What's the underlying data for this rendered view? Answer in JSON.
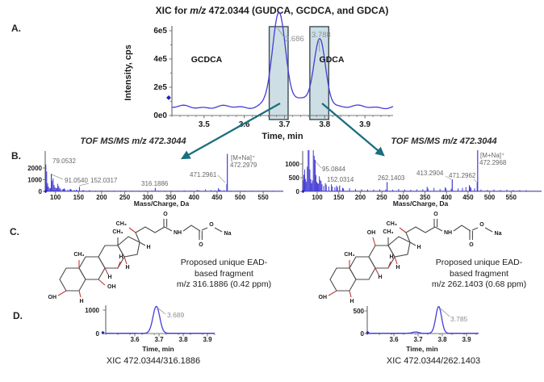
{
  "title": {
    "pre": "XIC for ",
    "mz": "m/z",
    "post": " 472.0344 (GUDCA, GCDCA, and GDCA)"
  },
  "panels": {
    "a": "A.",
    "b": "B.",
    "c": "C.",
    "d": "D."
  },
  "colors": {
    "trace": "#453cd6",
    "arrow": "#1b6e7e",
    "highlight_fill": "#cddee5",
    "highlight_border": "#3c4c54",
    "peak_label": "#8e8e8e",
    "mass_label": "#666666",
    "axis": "#777777",
    "bond": "#4a4a4a",
    "red_bond": "#c23a3a"
  },
  "chart_data": [
    {
      "id": "xic_a",
      "type": "line",
      "xlabel": "Time, min",
      "ylabel": "Intensity, cps",
      "x_range": [
        3.42,
        3.97
      ],
      "y_range": [
        0,
        600000
      ],
      "xticks": [
        {
          "v": 3.5,
          "label": "3.5"
        },
        {
          "v": 3.6,
          "label": "3.6"
        },
        {
          "v": 3.7,
          "label": "3.7"
        },
        {
          "v": 3.8,
          "label": "3.8"
        },
        {
          "v": 3.9,
          "label": "3.9"
        }
      ],
      "yticks": [
        {
          "v": 0,
          "label": "0e0"
        },
        {
          "v": 200000,
          "label": "2e5"
        },
        {
          "v": 400000,
          "label": "4e5"
        },
        {
          "v": 600000,
          "label": "6e5"
        }
      ],
      "baseline": 60000,
      "peaks": [
        {
          "name": "GCDCA",
          "rt": 3.686,
          "intensity": 630000,
          "sigma": 0.016,
          "label": "3.686"
        },
        {
          "name": "GDCA",
          "rt": 3.788,
          "intensity": 435000,
          "sigma": 0.014,
          "label": "3.788"
        },
        {
          "rt": 3.74,
          "intensity": 60000,
          "sigma": 0.05
        }
      ],
      "highlight_regions": [
        [
          3.662,
          3.709
        ],
        [
          3.763,
          3.81
        ]
      ]
    },
    {
      "id": "ms_b1",
      "type": "bar",
      "title": "TOF MS/MS m/z 472.3044",
      "xlabel": "Mass/Charge, Da",
      "x_range": [
        78,
        600
      ],
      "y_range": [
        0,
        2000
      ],
      "xticks": [
        {
          "v": 100,
          "label": "100"
        },
        {
          "v": 150,
          "label": "150"
        },
        {
          "v": 200,
          "label": "200"
        },
        {
          "v": 250,
          "label": "250"
        },
        {
          "v": 300,
          "label": "300"
        },
        {
          "v": 350,
          "label": "350"
        },
        {
          "v": 400,
          "label": "400"
        },
        {
          "v": 450,
          "label": "450"
        },
        {
          "v": 500,
          "label": "500"
        },
        {
          "v": 550,
          "label": "550"
        }
      ],
      "yticks": [
        {
          "v": 0,
          "label": "0"
        },
        {
          "v": 1000,
          "label": "1000"
        },
        {
          "v": 2000,
          "label": "2000"
        }
      ],
      "labeled_peaks": [
        {
          "mz": 79.0532,
          "intensity": 2300,
          "label": "79.0532",
          "lx": 45,
          "ly": 19
        },
        {
          "mz": 91.054,
          "intensity": 1500,
          "label": "91.0540",
          "lx": 60,
          "ly": 43,
          "leader": [
            44,
            33,
            58,
            39
          ]
        },
        {
          "mz": 152.0317,
          "intensity": 380,
          "label": "152.0317",
          "lx": 92,
          "ly": 43,
          "leader": [
            78,
            47,
            90,
            44
          ]
        },
        {
          "mz": 316.1886,
          "intensity": 300,
          "label": "316.1886",
          "lx": 155,
          "ly": 47
        },
        {
          "mz": 471.2961,
          "intensity": 620,
          "label": "471.2961",
          "lx": 215,
          "ly": 36,
          "leader": [
            250,
            34,
            259,
            43
          ]
        },
        {
          "mz": 472.2979,
          "intensity": 3200,
          "label": "472.2979",
          "annotation": "[M+Na]⁺",
          "lx": 265,
          "ly": 24,
          "ann_y": 15
        }
      ],
      "minor_peaks": [
        [
          80,
          500
        ],
        [
          81,
          1700
        ],
        [
          82,
          400
        ],
        [
          83,
          700
        ],
        [
          85,
          400
        ],
        [
          87,
          250
        ],
        [
          89,
          300
        ],
        [
          93,
          900
        ],
        [
          95,
          1100
        ],
        [
          97,
          550
        ],
        [
          99,
          350
        ],
        [
          101,
          280
        ],
        [
          103,
          300
        ],
        [
          105,
          650
        ],
        [
          107,
          450
        ],
        [
          109,
          300
        ],
        [
          111,
          220
        ],
        [
          115,
          180
        ],
        [
          117,
          200
        ],
        [
          119,
          260
        ],
        [
          121,
          180
        ],
        [
          127,
          150
        ],
        [
          131,
          170
        ],
        [
          133,
          200
        ],
        [
          135,
          150
        ],
        [
          141,
          130
        ],
        [
          145,
          140
        ],
        [
          147,
          110
        ],
        [
          159,
          100
        ],
        [
          161,
          90
        ],
        [
          173,
          90
        ],
        [
          175,
          80
        ],
        [
          187,
          70
        ],
        [
          199,
          80
        ],
        [
          213,
          60
        ],
        [
          227,
          70
        ],
        [
          241,
          60
        ],
        [
          253,
          70
        ],
        [
          267,
          60
        ],
        [
          281,
          70
        ],
        [
          295,
          60
        ],
        [
          309,
          80
        ],
        [
          323,
          60
        ],
        [
          337,
          70
        ],
        [
          351,
          60
        ],
        [
          365,
          70
        ],
        [
          379,
          90
        ],
        [
          393,
          70
        ],
        [
          407,
          130
        ],
        [
          411,
          90
        ],
        [
          425,
          180
        ],
        [
          437,
          110
        ],
        [
          445,
          90
        ],
        [
          453,
          280
        ],
        [
          455,
          160
        ],
        [
          457,
          110
        ],
        [
          465,
          90
        ],
        [
          480,
          60
        ],
        [
          495,
          50
        ],
        [
          510,
          60
        ],
        [
          525,
          50
        ],
        [
          540,
          60
        ],
        [
          555,
          50
        ],
        [
          570,
          45
        ]
      ]
    },
    {
      "id": "ms_b2",
      "type": "bar",
      "title": "TOF MS/MS m/z 472.3044",
      "xlabel": "Mass/Charge, Da",
      "x_range": [
        66,
        620
      ],
      "y_range": [
        0,
        1000
      ],
      "xticks": [
        {
          "v": 100,
          "label": "100"
        },
        {
          "v": 150,
          "label": "150"
        },
        {
          "v": 200,
          "label": "200"
        },
        {
          "v": 250,
          "label": "250"
        },
        {
          "v": 300,
          "label": "300"
        },
        {
          "v": 350,
          "label": "350"
        },
        {
          "v": 400,
          "label": "400"
        },
        {
          "v": 450,
          "label": "450"
        },
        {
          "v": 500,
          "label": "500"
        },
        {
          "v": 550,
          "label": "550"
        }
      ],
      "yticks": [
        {
          "v": 0,
          "label": "0"
        },
        {
          "v": 500,
          "label": "500"
        },
        {
          "v": 1000,
          "label": "1000"
        }
      ],
      "labeled_peaks": [
        {
          "mz": 95.0844,
          "intensity": 1150,
          "label": "95.0844",
          "lx": 69,
          "ly": 29,
          "leader": [
            61,
            17,
            68,
            25
          ]
        },
        {
          "mz": 152.0314,
          "intensity": 210,
          "label": "152.0314",
          "lx": 75,
          "ly": 42
        },
        {
          "mz": 262.1403,
          "intensity": 340,
          "label": "262.1403",
          "lx": 138,
          "ly": 40
        },
        {
          "mz": 413.2904,
          "intensity": 440,
          "label": "413.2904",
          "lx": 186,
          "ly": 34,
          "leader": [
            222,
            35,
            229,
            39
          ]
        },
        {
          "mz": 471.2962,
          "intensity": 340,
          "label": "471.2962",
          "lx": 226,
          "ly": 37,
          "leader": [
            257,
            39,
            260,
            42
          ]
        },
        {
          "mz": 472.2968,
          "intensity": 1700,
          "label": "472.2968",
          "annotation": "[M+Na]⁺",
          "lx": 264,
          "ly": 21,
          "ann_y": 12
        }
      ],
      "minor_peaks": [
        [
          67,
          400
        ],
        [
          69,
          600
        ],
        [
          71,
          800
        ],
        [
          73,
          450
        ],
        [
          75,
          350
        ],
        [
          77,
          900
        ],
        [
          79,
          1900
        ],
        [
          81,
          1800
        ],
        [
          83,
          800
        ],
        [
          85,
          450
        ],
        [
          87,
          300
        ],
        [
          89,
          400
        ],
        [
          91,
          1750
        ],
        [
          93,
          1300
        ],
        [
          97,
          600
        ],
        [
          99,
          350
        ],
        [
          101,
          300
        ],
        [
          103,
          280
        ],
        [
          105,
          550
        ],
        [
          107,
          420
        ],
        [
          109,
          380
        ],
        [
          111,
          260
        ],
        [
          115,
          200
        ],
        [
          119,
          300
        ],
        [
          121,
          240
        ],
        [
          127,
          180
        ],
        [
          133,
          260
        ],
        [
          135,
          180
        ],
        [
          141,
          150
        ],
        [
          145,
          210
        ],
        [
          147,
          150
        ],
        [
          159,
          130
        ],
        [
          161,
          110
        ],
        [
          175,
          120
        ],
        [
          189,
          90
        ],
        [
          203,
          80
        ],
        [
          217,
          70
        ],
        [
          231,
          70
        ],
        [
          245,
          80
        ],
        [
          259,
          70
        ],
        [
          275,
          60
        ],
        [
          289,
          90
        ],
        [
          303,
          70
        ],
        [
          317,
          60
        ],
        [
          331,
          70
        ],
        [
          345,
          80
        ],
        [
          355,
          170
        ],
        [
          357,
          110
        ],
        [
          371,
          130
        ],
        [
          385,
          90
        ],
        [
          397,
          150
        ],
        [
          399,
          110
        ],
        [
          411,
          100
        ],
        [
          427,
          110
        ],
        [
          437,
          130
        ],
        [
          445,
          160
        ],
        [
          453,
          230
        ],
        [
          455,
          170
        ],
        [
          457,
          130
        ],
        [
          465,
          110
        ],
        [
          480,
          70
        ],
        [
          495,
          60
        ],
        [
          510,
          70
        ],
        [
          525,
          55
        ],
        [
          540,
          65
        ],
        [
          555,
          50
        ],
        [
          570,
          50
        ],
        [
          585,
          45
        ]
      ]
    },
    {
      "id": "xic_d1",
      "type": "line",
      "xlabel": "Time, min",
      "caption": "XIC 472.0344/316.1886",
      "x_range": [
        3.48,
        3.93
      ],
      "y_range": [
        0,
        1000
      ],
      "xticks": [
        {
          "v": 3.6,
          "label": "3.6"
        },
        {
          "v": 3.7,
          "label": "3.7"
        },
        {
          "v": 3.8,
          "label": "3.8"
        },
        {
          "v": 3.9,
          "label": "3.9"
        }
      ],
      "yticks": [
        {
          "v": 0,
          "label": "0"
        },
        {
          "v": 1000,
          "label": "1000"
        }
      ],
      "baseline": 10,
      "peaks": [
        {
          "rt": 3.689,
          "intensity": 1150,
          "sigma": 0.014,
          "label": "3.689"
        }
      ]
    },
    {
      "id": "xic_d2",
      "type": "line",
      "xlabel": "Time, min",
      "caption": "XIC 472.0344/262.1403",
      "x_range": [
        3.49,
        3.95
      ],
      "y_range": [
        0,
        500
      ],
      "xticks": [
        {
          "v": 3.6,
          "label": "3.6"
        },
        {
          "v": 3.7,
          "label": "3.7"
        },
        {
          "v": 3.8,
          "label": "3.8"
        },
        {
          "v": 3.9,
          "label": "3.9"
        }
      ],
      "yticks": [
        {
          "v": 0,
          "label": "0"
        },
        {
          "v": 500,
          "label": "500"
        }
      ],
      "baseline": 6,
      "peaks": [
        {
          "rt": 3.785,
          "intensity": 590,
          "sigma": 0.012,
          "label": "3.785"
        },
        {
          "rt": 3.69,
          "intensity": 28,
          "sigma": 0.013
        }
      ]
    }
  ],
  "structures": {
    "left": {
      "atoms": {
        "oh3": "OH",
        "h5": "H",
        "ch19": "CH₃",
        "h9": "H",
        "h8": "H",
        "h14": "H",
        "oh7": "OH",
        "ch18": "CH₃",
        "h17": "H",
        "ch21": "CH₃",
        "nh": "NH",
        "o_amide": "O",
        "o_acid": "O",
        "o_ester": "O",
        "na": "Na"
      },
      "caption": [
        "Proposed unique EAD-",
        "based fragment",
        "m/z 316.1886 (0.42 ppm)"
      ]
    },
    "right": {
      "atoms": {
        "oh3": "OH",
        "h5": "H",
        "ch19": "CH₃",
        "h9": "H",
        "h8": "H",
        "h14": "H",
        "oh12": "OH",
        "ch18": "CH₃",
        "h17": "H",
        "ch21": "CH₃",
        "nh": "NH",
        "o_amide": "O",
        "o_acid": "O",
        "o_ester": "O",
        "na": "Na"
      },
      "caption": [
        "Proposed unique EAD-",
        "based fragment",
        "m/z 262.1403 (0.68 ppm)"
      ]
    }
  }
}
